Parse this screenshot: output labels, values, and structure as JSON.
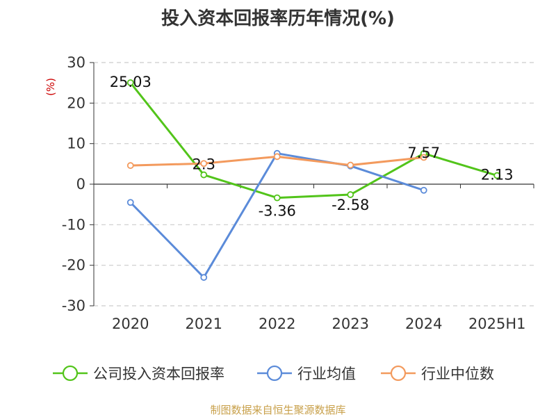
{
  "title": "投入资本回报率历年情况(%)",
  "footer": "制图数据来自恒生聚源数据库",
  "chart_data": {
    "type": "line",
    "title": "投入资本回报率历年情况(%)",
    "ylabel": "(%)",
    "xlabel": "",
    "categories": [
      "2020",
      "2021",
      "2022",
      "2023",
      "2024",
      "2025H1"
    ],
    "ylim": [
      -30,
      30
    ],
    "yticks": [
      30,
      20,
      10,
      0,
      -10,
      -20,
      -30
    ],
    "grid": "horizontal dashed",
    "legend_position": "bottom",
    "series": [
      {
        "name": "公司投入资本回报率",
        "color": "#52c41a",
        "values": [
          25.03,
          2.3,
          -3.36,
          -2.58,
          7.57,
          2.13
        ],
        "labels": [
          "25.03",
          "2.3",
          "-3.36",
          "-2.58",
          "7.57",
          "2.13"
        ]
      },
      {
        "name": "行业均值",
        "color": "#5b8bd9",
        "values": [
          -4.5,
          -23.0,
          7.6,
          4.5,
          -1.5,
          null
        ]
      },
      {
        "name": "行业中位数",
        "color": "#f39a5d",
        "values": [
          4.6,
          5.1,
          6.8,
          4.7,
          6.6,
          null
        ]
      }
    ]
  }
}
